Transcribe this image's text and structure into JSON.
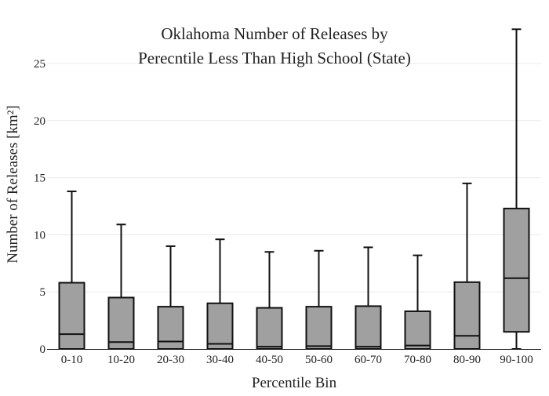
{
  "chart_data": {
    "type": "box",
    "title_lines": [
      "Oklahoma Number of Releases by",
      "Perecntile Less Than High School (State)"
    ],
    "xlabel": "Percentile Bin",
    "ylabel": "Number of Releases  [km²]",
    "ylim": [
      0,
      28.5
    ],
    "yticks": [
      0,
      5,
      10,
      15,
      20,
      25
    ],
    "grid": true,
    "legend": "none",
    "colors": {
      "box_fill": "#a0a0a0",
      "line": "#111111",
      "grid": "#e9e9e9"
    },
    "categories": [
      "0-10",
      "10-20",
      "20-30",
      "30-40",
      "40-50",
      "50-60",
      "60-70",
      "70-80",
      "80-90",
      "90-100"
    ],
    "boxes": [
      {
        "category": "0-10",
        "min": 0,
        "q1": 0,
        "median": 1.3,
        "q3": 5.8,
        "max": 13.8
      },
      {
        "category": "10-20",
        "min": 0,
        "q1": 0,
        "median": 0.6,
        "q3": 4.5,
        "max": 10.9
      },
      {
        "category": "20-30",
        "min": 0,
        "q1": 0,
        "median": 0.65,
        "q3": 3.7,
        "max": 9.0
      },
      {
        "category": "30-40",
        "min": 0,
        "q1": 0,
        "median": 0.45,
        "q3": 4.0,
        "max": 9.6
      },
      {
        "category": "40-50",
        "min": 0,
        "q1": 0,
        "median": 0.2,
        "q3": 3.6,
        "max": 8.5
      },
      {
        "category": "50-60",
        "min": 0,
        "q1": 0,
        "median": 0.25,
        "q3": 3.7,
        "max": 8.6
      },
      {
        "category": "60-70",
        "min": 0,
        "q1": 0,
        "median": 0.2,
        "q3": 3.75,
        "max": 8.9
      },
      {
        "category": "70-80",
        "min": 0,
        "q1": 0,
        "median": 0.3,
        "q3": 3.3,
        "max": 8.2
      },
      {
        "category": "80-90",
        "min": 0,
        "q1": 0,
        "median": 1.15,
        "q3": 5.85,
        "max": 14.5
      },
      {
        "category": "90-100",
        "min": 0,
        "q1": 1.5,
        "median": 6.2,
        "q3": 12.3,
        "max": 28.0
      }
    ]
  }
}
